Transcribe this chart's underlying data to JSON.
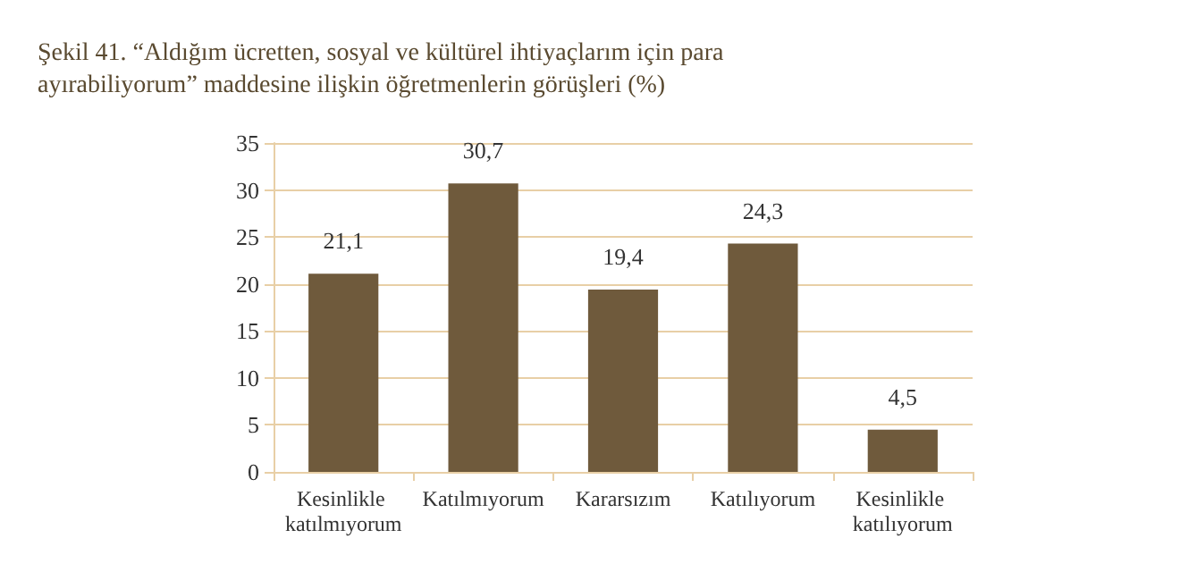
{
  "chart_data": {
    "type": "bar",
    "title": "Şekil 41. “Aldığım ücretten, sosyal ve kültürel ihtiyaçlarım için para ayırabiliyorum” maddesine ilişkin öğretmenlerin görüşleri (%)",
    "categories": [
      "Kesinlikle katılmıyorum",
      "Katılmıyorum",
      "Kararsızım",
      "Katılıyorum",
      "Kesinlikle katılıyorum"
    ],
    "values": [
      21.1,
      30.7,
      19.4,
      24.3,
      4.5
    ],
    "value_labels": [
      "21,1",
      "30,7",
      "19,4",
      "24,3",
      "4,5"
    ],
    "color": "#6f5a3c",
    "ylim": [
      0,
      35
    ],
    "yticks": [
      0,
      5,
      10,
      15,
      20,
      25,
      30,
      35
    ],
    "grid": "y"
  }
}
